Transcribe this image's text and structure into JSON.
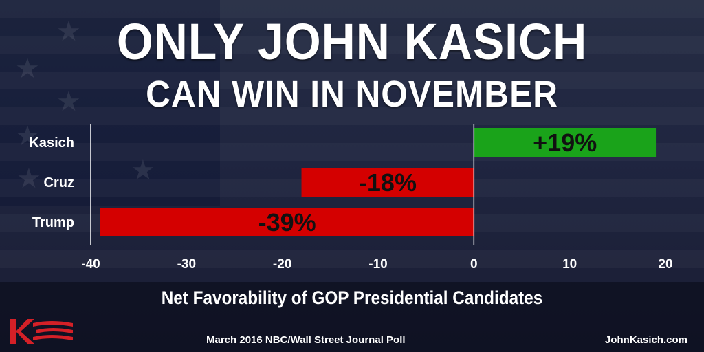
{
  "headline": {
    "title": "ONLY JOHN KASICH",
    "subtitle": "CAN WIN IN NOVEMBER"
  },
  "chart_data": {
    "type": "bar",
    "orientation": "horizontal",
    "categories": [
      "Kasich",
      "Cruz",
      "Trump"
    ],
    "values": [
      19,
      -18,
      -39
    ],
    "data_labels": [
      "+19%",
      "-18%",
      "-39%"
    ],
    "colors": [
      "#1aa31a",
      "#d40000",
      "#d40000"
    ],
    "xlabel": "Net Favorability of GOP Presidential Candidates",
    "xlim": [
      -40,
      20
    ],
    "xticks": [
      -40,
      -30,
      -20,
      -10,
      0,
      10,
      20
    ],
    "grid": false,
    "legend": "none"
  },
  "footer": {
    "source": "March 2016 NBC/Wall Street Journal Poll",
    "website": "JohnKasich.com"
  },
  "logo": {
    "icon": "kasich-k-logo-icon",
    "color": "#d42027"
  }
}
